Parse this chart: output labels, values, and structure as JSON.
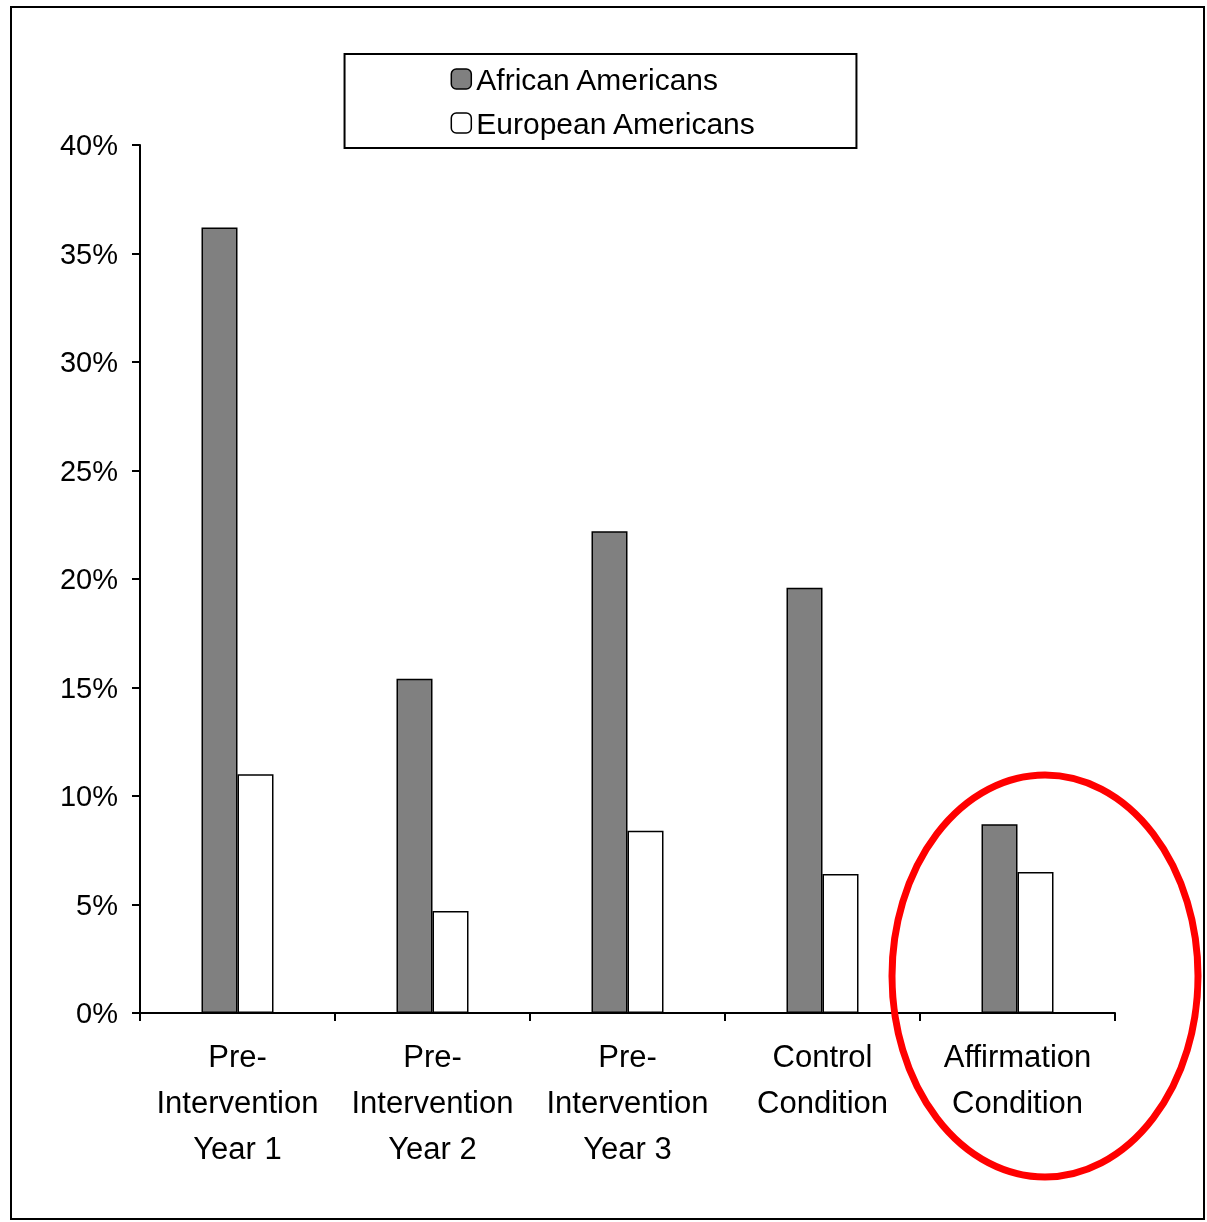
{
  "chart_data": {
    "type": "bar",
    "categories": [
      "Pre-Intervention Year 1",
      "Pre-Intervention Year 2",
      "Pre-Intervention Year 3",
      "Control Condition",
      "Affirmation Condition"
    ],
    "series": [
      {
        "name": "African Americans",
        "color": "#808080",
        "values": [
          36.2,
          15.4,
          22.2,
          19.6,
          8.7
        ]
      },
      {
        "name": "European Americans",
        "color": "#ffffff",
        "values": [
          11.0,
          4.7,
          8.4,
          6.4,
          6.5
        ]
      }
    ],
    "ylim": [
      0,
      40
    ],
    "yticks": [
      {
        "value": 0,
        "label": "0%"
      },
      {
        "value": 5,
        "label": "5%"
      },
      {
        "value": 10,
        "label": "10%"
      },
      {
        "value": 15,
        "label": "15%"
      },
      {
        "value": 20,
        "label": "20%"
      },
      {
        "value": 25,
        "label": "25%"
      },
      {
        "value": 30,
        "label": "30%"
      },
      {
        "value": 35,
        "label": "35%"
      },
      {
        "value": 40,
        "label": "40%"
      }
    ],
    "grid": false,
    "legend": "top"
  }
}
